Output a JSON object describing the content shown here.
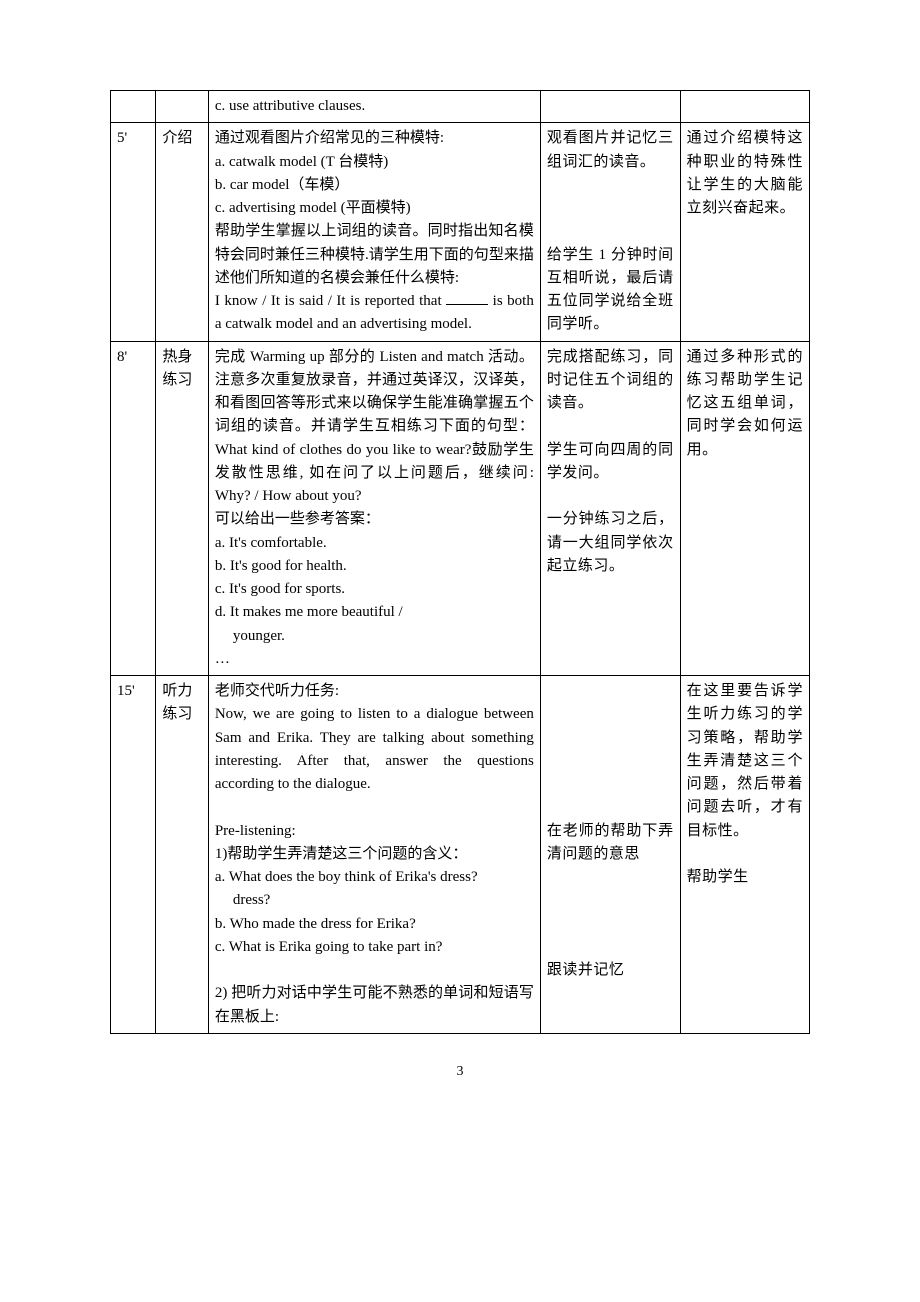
{
  "page_number": "3",
  "colors": {
    "text": "#000000",
    "border": "#000000",
    "background": "#ffffff"
  },
  "rows": [
    {
      "time": "",
      "step": "",
      "teacher": "c. use attributive clauses.",
      "student": "",
      "intent": ""
    },
    {
      "time": "5'",
      "step": "介绍",
      "teacher_lines": [
        "通过观看图片介绍常见的三种模特:",
        "a. catwalk model (T 台模特)",
        "b. car model（车模）",
        "c. advertising model (平面模特)",
        "帮助学生掌握以上词组的读音。同时指出知名模特会同时兼任三种模特.请学生用下面的句型来描述他们所知道的名模会兼任什么模特:",
        "I know / It is said / It is reported that ",
        " is both a catwalk model and an advertising model."
      ],
      "student_p1": "观看图片并记忆三组词汇的读音。",
      "student_p2": "给学生 1 分钟时间互相听说，最后请五位同学说给全班同学听。",
      "intent": "通过介绍模特这种职业的特殊性让学生的大脑能立刻兴奋起来。"
    },
    {
      "time": "8'",
      "step": "热身练习",
      "teacher_pre": "完成 Warming up 部分的 Listen and match 活动。注意多次重复放录音，并通过英译汉，汉译英，和看图回答等形式来以确保学生能准确掌握五个词组的读音。并请学生互相练习下面的句型：What kind of clothes do you like to wear?鼓励学生发散性思维, 如在问了以上问题后，继续问: Why? / How about you?",
      "teacher_mid": "可以给出一些参考答案：",
      "teacher_opts": [
        "a. It's comfortable.",
        "b. It's good for health.",
        "c. It's good for sports.",
        "d. It makes me more beautiful / "
      ],
      "teacher_opt_cont": "younger.",
      "teacher_tail": "…",
      "student_p1": "完成搭配练习，同时记住五个词组的读音。",
      "student_p2": "学生可向四周的同学发问。",
      "student_p3": "一分钟练习之后，请一大组同学依次起立练习。",
      "intent": "通过多种形式的练习帮助学生记忆这五组单词，同时学会如何运用。"
    },
    {
      "time": "15'",
      "step": "听力练习",
      "teacher_l1": "老师交代听力任务:",
      "teacher_l2": "Now, we are going to listen to a dialogue between Sam and Erika. They are talking about something interesting. After that, answer the questions according to the dialogue.",
      "teacher_l3": "Pre-listening:",
      "teacher_l4": "1)帮助学生弄清楚这三个问题的含义：",
      "teacher_qa": "a. What does the boy think of Erika's dress?",
      "teacher_qb": "b. Who made the dress for Erika?",
      "teacher_qc": "c. What is Erika going to take part in?",
      "teacher_l5": "2) 把听力对话中学生可能不熟悉的单词和短语写在黑板上:",
      "student_p1": "在老师的帮助下弄清问题的意思",
      "student_p2": "跟读并记忆",
      "intent_p1": "在这里要告诉学生听力练习的学习策略，帮助学生弄清楚这三个问题，然后带着问题去听，才有目标性。",
      "intent_p2": "帮助学生"
    }
  ]
}
